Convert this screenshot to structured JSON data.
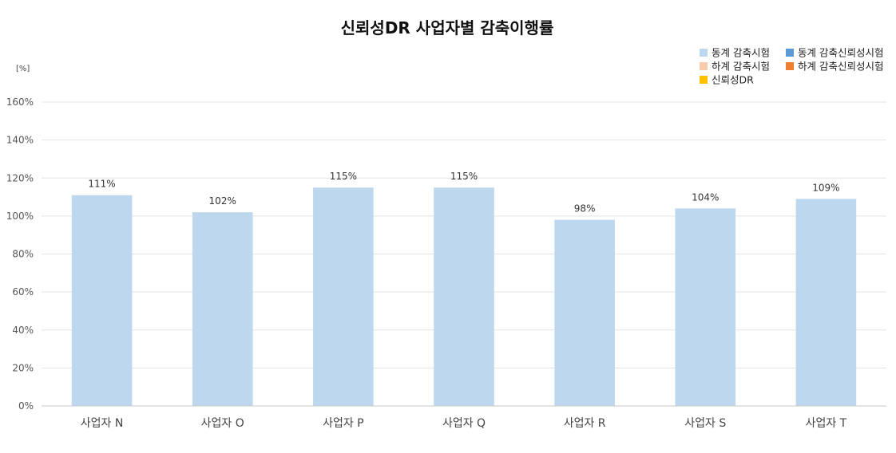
{
  "chart_data": {
    "type": "bar",
    "title": "신뢰성DR 사업자별 감축이행률",
    "unit": "[%]",
    "categories": [
      "사업자 N",
      "사업자 O",
      "사업자 P",
      "사업자 Q",
      "사업자 R",
      "사업자 S",
      "사업자 T"
    ],
    "values": [
      111,
      102,
      115,
      115,
      98,
      104,
      109
    ],
    "data_labels": [
      "111%",
      "102%",
      "115%",
      "115%",
      "98%",
      "104%",
      "109%"
    ],
    "ylim": [
      0,
      160
    ],
    "yticks": [
      0,
      20,
      40,
      60,
      80,
      100,
      120,
      140,
      160
    ],
    "ytick_labels": [
      "0%",
      "20%",
      "40%",
      "60%",
      "80%",
      "100%",
      "120%",
      "140%",
      "160%"
    ],
    "grid": true,
    "legend_position": "top-right",
    "bar_color": "#bdd7ee",
    "legend": [
      {
        "label": "동계 감축시험",
        "color": "#bdd7ee"
      },
      {
        "label": "동계 감축신뢰성시험",
        "color": "#5b9bd5"
      },
      {
        "label": "하계 감축시험",
        "color": "#f8cbad"
      },
      {
        "label": "하계 감축신뢰성시험",
        "color": "#ed7d31"
      },
      {
        "label": "신뢰성DR",
        "color": "#ffc000"
      }
    ]
  }
}
